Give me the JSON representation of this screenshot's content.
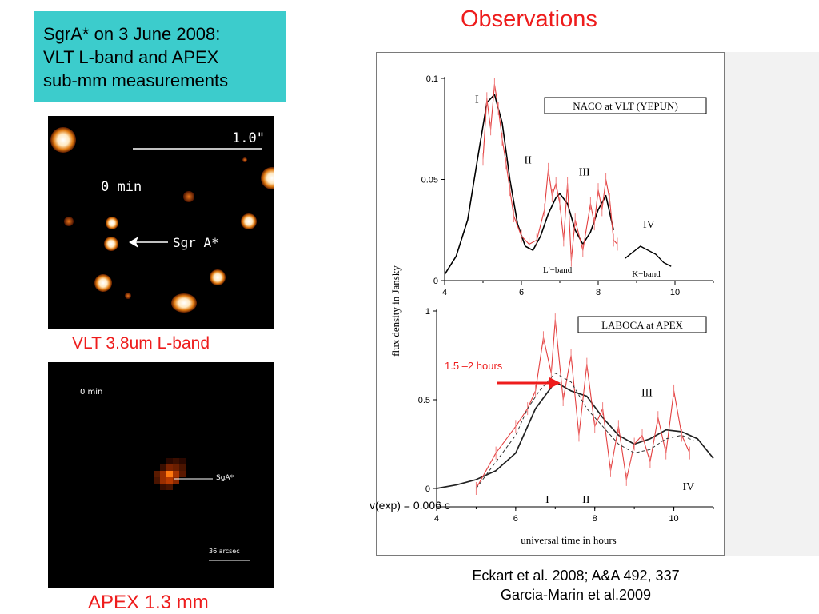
{
  "slide": {
    "title_lines": [
      "SgrA*  on 3 June 2008:",
      "VLT L-band and APEX",
      "sub-mm measurements"
    ],
    "observations": "Observations",
    "vlt_caption": "VLT  3.8um  L-band",
    "apex_caption": "APEX 1.3 mm",
    "reference_lines": [
      "Eckart et al. 2008; A&A 492, 337",
      "Garcia-Marin et al.2009"
    ],
    "annotation_hours": "1.5 –2 hours",
    "annotation_vexp": "v(exp) = 0.006 c",
    "colors": {
      "accent_red": "#ee1c1c",
      "title_box": "#3ccccc"
    }
  },
  "vlt_image": {
    "scale_label": "1.0\"",
    "time_label": "0 min",
    "target_label": "Sgr A*"
  },
  "apex_image": {
    "time_label": "0 min",
    "target_label": "SgA*",
    "scale_label": "36 arcsec"
  },
  "chart_data": [
    {
      "type": "line",
      "title": "NACO at VLT (YEPUN)",
      "ylabel": "flux density in Jansky",
      "xlim": [
        4,
        11
      ],
      "ylim": [
        0,
        0.1
      ],
      "xticks": [
        4,
        6,
        8,
        10
      ],
      "ytick_labels": [
        "0",
        "0.05",
        "0.1"
      ],
      "band_labels": [
        "L'−band",
        "K−band"
      ],
      "flare_labels": [
        "I",
        "II",
        "III",
        "IV"
      ],
      "series": [
        {
          "x": [
            4.0,
            4.3,
            4.6,
            4.9,
            5.1,
            5.3,
            5.5,
            5.7,
            5.9,
            6.1,
            6.3,
            6.5,
            6.7,
            6.9,
            7.0,
            7.2,
            7.4,
            7.6,
            7.8,
            8.0,
            8.2,
            8.4
          ],
          "y": [
            0.003,
            0.012,
            0.03,
            0.065,
            0.088,
            0.092,
            0.078,
            0.05,
            0.028,
            0.017,
            0.015,
            0.022,
            0.033,
            0.041,
            0.043,
            0.038,
            0.025,
            0.018,
            0.024,
            0.035,
            0.042,
            0.025
          ]
        },
        {
          "x": [
            5.0,
            5.1,
            5.2,
            5.3,
            5.4,
            5.5,
            5.6,
            5.7,
            5.8,
            6.0,
            6.2,
            6.4,
            6.6,
            6.7,
            6.8,
            6.9,
            7.0,
            7.1,
            7.2,
            7.3,
            7.4,
            7.6,
            7.8,
            7.9,
            8.0,
            8.1,
            8.2,
            8.3,
            8.4,
            8.5
          ],
          "y": [
            0.06,
            0.09,
            0.075,
            0.097,
            0.085,
            0.07,
            0.058,
            0.045,
            0.032,
            0.022,
            0.018,
            0.02,
            0.035,
            0.055,
            0.042,
            0.048,
            0.038,
            0.02,
            0.048,
            0.01,
            0.03,
            0.015,
            0.038,
            0.028,
            0.045,
            0.035,
            0.05,
            0.04,
            0.02,
            0.018
          ]
        },
        {
          "x": [
            8.7,
            8.9,
            9.1,
            9.3,
            9.5,
            9.7,
            9.9
          ],
          "y": [
            0.011,
            0.014,
            0.017,
            0.015,
            0.013,
            0.009,
            0.007
          ]
        }
      ]
    },
    {
      "type": "line",
      "title": "LABOCA at APEX",
      "xlabel": "universal time in hours",
      "xlim": [
        4,
        11
      ],
      "ylim": [
        0,
        1
      ],
      "xticks": [
        4,
        6,
        8,
        10
      ],
      "ytick_labels": [
        "0",
        "0.5",
        "1"
      ],
      "flare_labels": [
        "I",
        "II",
        "III",
        "IV"
      ],
      "series": [
        {
          "x": [
            4.0,
            4.5,
            5.0,
            5.5,
            6.0,
            6.5,
            7.0,
            7.4,
            7.8,
            8.2,
            8.6,
            9.0,
            9.4,
            9.8,
            10.2,
            10.6,
            11.0
          ],
          "y": [
            0.0,
            0.02,
            0.05,
            0.1,
            0.2,
            0.45,
            0.6,
            0.55,
            0.52,
            0.4,
            0.3,
            0.25,
            0.28,
            0.33,
            0.32,
            0.28,
            0.17
          ]
        },
        {
          "x": [
            5.0,
            5.5,
            6.0,
            6.3,
            6.5,
            6.7,
            6.9,
            7.0,
            7.2,
            7.4,
            7.6,
            7.8,
            8.0,
            8.2,
            8.4,
            8.6,
            8.8,
            9.0,
            9.2,
            9.4,
            9.6,
            9.8,
            10.0,
            10.2,
            10.4
          ],
          "y": [
            0.0,
            0.2,
            0.35,
            0.45,
            0.55,
            0.85,
            0.65,
            0.95,
            0.5,
            0.75,
            0.3,
            0.7,
            0.35,
            0.45,
            0.1,
            0.35,
            0.05,
            0.25,
            0.3,
            0.15,
            0.4,
            0.2,
            0.55,
            0.3,
            0.2
          ]
        },
        {
          "x": [
            5.0,
            5.5,
            6.0,
            6.3,
            6.6,
            7.0,
            7.4,
            7.8,
            8.2,
            8.6,
            9.0,
            9.4,
            9.8,
            10.2,
            10.5
          ],
          "y": [
            0.0,
            0.15,
            0.3,
            0.45,
            0.55,
            0.65,
            0.6,
            0.45,
            0.35,
            0.25,
            0.2,
            0.22,
            0.28,
            0.3,
            0.27
          ]
        }
      ]
    }
  ]
}
